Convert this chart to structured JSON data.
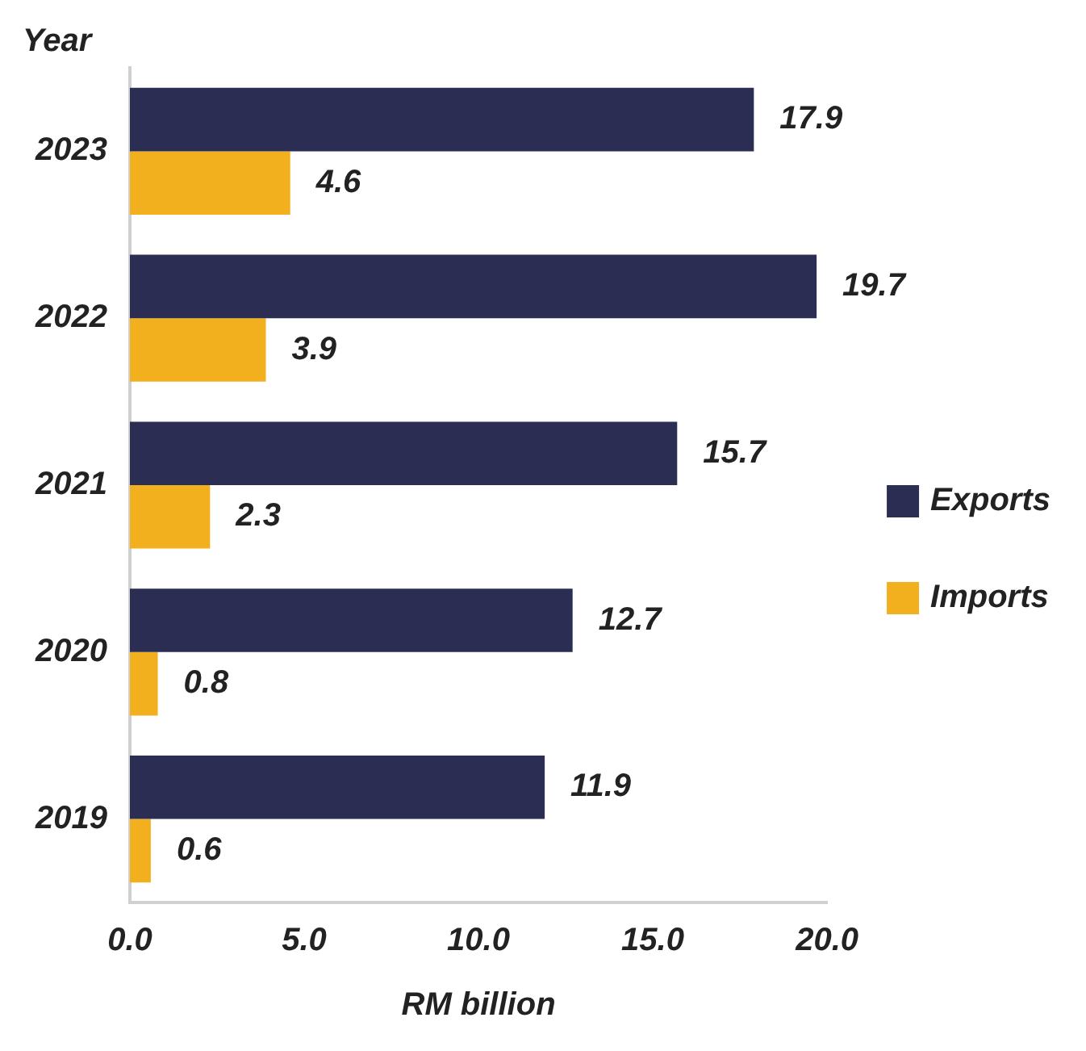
{
  "chart_data": {
    "type": "bar",
    "orientation": "horizontal",
    "xlabel": "RM billion",
    "ylabel": "Year",
    "categories": [
      "2023",
      "2022",
      "2021",
      "2020",
      "2019"
    ],
    "series": [
      {
        "name": "Exports",
        "color": "#2b2d52",
        "values": [
          17.9,
          19.7,
          15.7,
          12.7,
          11.9
        ]
      },
      {
        "name": "Imports",
        "color": "#f2b01e",
        "values": [
          4.6,
          3.9,
          2.3,
          0.8,
          0.6
        ]
      }
    ],
    "xlim": [
      0,
      20
    ],
    "xticks": [
      {
        "value": 0,
        "label": "0.0"
      },
      {
        "value": 5,
        "label": "5.0"
      },
      {
        "value": 10,
        "label": "10.0"
      },
      {
        "value": 15,
        "label": "15.0"
      },
      {
        "value": 20,
        "label": "20.0"
      }
    ],
    "data_labels": true,
    "legend": "right",
    "grid": false
  }
}
